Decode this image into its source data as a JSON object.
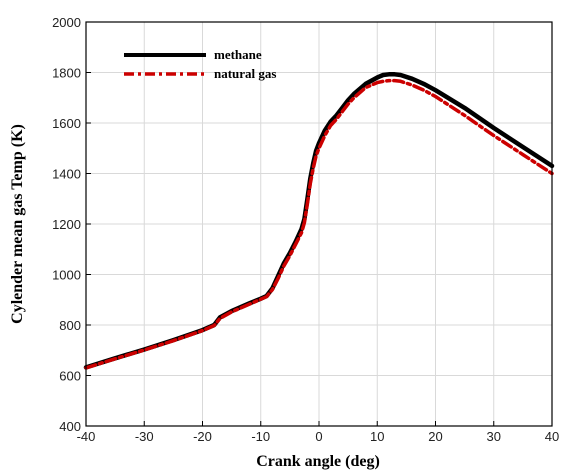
{
  "chart_data": {
    "type": "line",
    "xlabel": "Crank angle (deg)",
    "ylabel": "Cylender mean gas Temp (K)",
    "xlim": [
      -40,
      40
    ],
    "ylim": [
      400,
      2000
    ],
    "xticks": [
      -40,
      -30,
      -20,
      -10,
      0,
      10,
      20,
      30,
      40
    ],
    "yticks": [
      400,
      600,
      800,
      1000,
      1200,
      1400,
      1600,
      1800,
      2000
    ],
    "grid": true,
    "legend_position": "top-left",
    "series": [
      {
        "name": "methane",
        "color": "#000000",
        "style": "solid",
        "x": [
          -40,
          -35,
          -30,
          -25,
          -20,
          -18,
          -17,
          -15,
          -12,
          -10,
          -9,
          -8,
          -7,
          -6,
          -5,
          -4,
          -3,
          -2.5,
          -2,
          -1.5,
          -1,
          -0.5,
          0,
          1,
          2,
          3,
          4,
          5,
          6,
          8,
          10,
          11,
          12,
          13,
          14,
          16,
          18,
          20,
          25,
          30,
          35,
          40
        ],
        "y": [
          632,
          668,
          703,
          740,
          780,
          800,
          830,
          855,
          885,
          904,
          915,
          945,
          995,
          1045,
          1085,
          1130,
          1180,
          1220,
          1300,
          1380,
          1440,
          1490,
          1520,
          1570,
          1605,
          1630,
          1660,
          1690,
          1715,
          1755,
          1780,
          1790,
          1793,
          1793,
          1790,
          1775,
          1755,
          1730,
          1660,
          1580,
          1505,
          1430
        ]
      },
      {
        "name": "natural gas",
        "color": "#cc0000",
        "style": "dash-dot",
        "x": [
          -40,
          -35,
          -30,
          -25,
          -20,
          -18,
          -17,
          -15,
          -12,
          -10,
          -9,
          -8,
          -7,
          -6,
          -5,
          -4,
          -3,
          -2.5,
          -2,
          -1.5,
          -1,
          -0.5,
          0,
          1,
          2,
          3,
          4,
          5,
          6,
          8,
          10,
          11,
          12,
          13,
          14,
          16,
          18,
          20,
          25,
          30,
          35,
          40
        ],
        "y": [
          630,
          666,
          701,
          738,
          778,
          798,
          826,
          852,
          882,
          902,
          912,
          940,
          985,
          1035,
          1075,
          1120,
          1165,
          1205,
          1280,
          1360,
          1420,
          1470,
          1500,
          1550,
          1590,
          1615,
          1645,
          1675,
          1700,
          1740,
          1760,
          1765,
          1768,
          1768,
          1765,
          1750,
          1730,
          1705,
          1630,
          1550,
          1475,
          1400
        ]
      }
    ]
  }
}
